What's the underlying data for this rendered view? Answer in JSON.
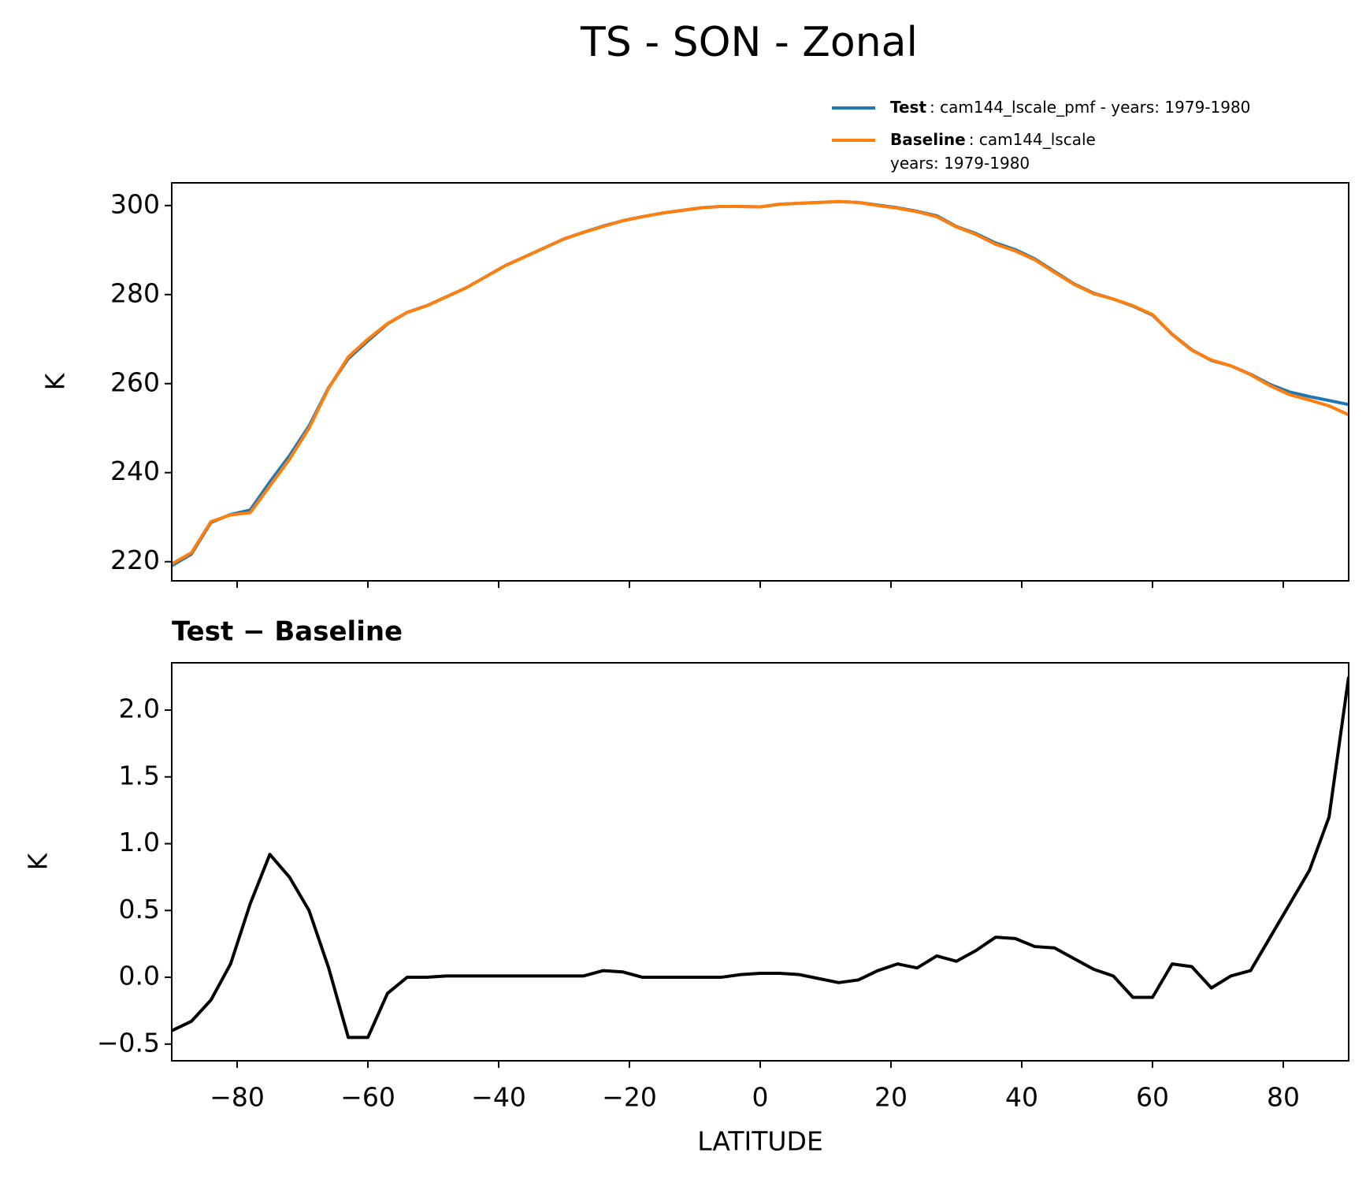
{
  "chart_data": [
    {
      "type": "line",
      "title": "TS - SON - Zonal",
      "ylabel": "K",
      "legend": "above right",
      "show_xtick_labels": false,
      "x": [
        -90,
        -87,
        -84,
        -81,
        -78,
        -75,
        -72,
        -69,
        -66,
        -63,
        -60,
        -57,
        -54,
        -51,
        -48,
        -45,
        -42,
        -39,
        -36,
        -33,
        -30,
        -27,
        -24,
        -21,
        -18,
        -15,
        -12,
        -9,
        -6,
        -3,
        0,
        3,
        6,
        9,
        12,
        15,
        18,
        21,
        24,
        27,
        30,
        33,
        36,
        39,
        42,
        45,
        48,
        51,
        54,
        57,
        60,
        63,
        66,
        69,
        72,
        75,
        78,
        81,
        84,
        87,
        90
      ],
      "series": [
        {
          "name": "Test",
          "legend_text": [
            ": cam144_lscale_pmf - years: 1979-1980"
          ],
          "color": "#1f77b4",
          "values": [
            219.1,
            221.7,
            228.8,
            230.6,
            231.6,
            237.9,
            243.8,
            250.5,
            259.1,
            265.6,
            269.6,
            273.4,
            276,
            277.5,
            279.5,
            281.5,
            284,
            286.5,
            288.5,
            290.5,
            292.5,
            294,
            295.4,
            296.6,
            297.5,
            298.3,
            298.9,
            299.5,
            299.8,
            299.8,
            299.7,
            300.3,
            300.5,
            300.7,
            300.9,
            300.7,
            300.1,
            299.5,
            298.7,
            297.7,
            295.3,
            293.7,
            291.6,
            290.1,
            288,
            285.2,
            282.4,
            280.3,
            279,
            277.4,
            275.4,
            271.1,
            267.6,
            265.2,
            264,
            262.1,
            259.8,
            258.1,
            257.1,
            256.2,
            255.3
          ]
        },
        {
          "name": "Baseline",
          "legend_text": [
            ": cam144_lscale",
            "years: 1979-1980"
          ],
          "color": "#ff7f0e",
          "values": [
            219.5,
            222,
            229,
            230.5,
            231,
            237,
            243,
            250,
            259,
            266,
            270,
            273.5,
            276,
            277.5,
            279.5,
            281.5,
            284,
            286.5,
            288.5,
            290.5,
            292.5,
            294,
            295.3,
            296.6,
            297.5,
            298.3,
            298.9,
            299.5,
            299.8,
            299.8,
            299.7,
            300.3,
            300.5,
            300.7,
            300.9,
            300.7,
            300,
            299.4,
            298.6,
            297.5,
            295.2,
            293.5,
            291.3,
            289.8,
            287.8,
            285,
            282.3,
            280.2,
            279,
            277.5,
            275.5,
            271,
            267.5,
            265.3,
            264,
            262,
            259.5,
            257.5,
            256.3,
            255,
            253
          ]
        }
      ],
      "xlim": [
        -90,
        90
      ],
      "xticks": [
        {
          "value": -80,
          "label": "−80"
        },
        {
          "value": -60,
          "label": "−60"
        },
        {
          "value": -40,
          "label": "−40"
        },
        {
          "value": -20,
          "label": "−20"
        },
        0,
        20,
        40,
        60,
        80
      ],
      "ylim": [
        215.7,
        305.1
      ],
      "yticks": [
        220,
        240,
        260,
        280,
        300
      ]
    },
    {
      "type": "line",
      "title": "Test − Baseline",
      "xlabel": "LATITUDE",
      "ylabel": "K",
      "show_xtick_labels": true,
      "x": [
        -90,
        -87,
        -84,
        -81,
        -78,
        -75,
        -72,
        -69,
        -66,
        -63,
        -60,
        -57,
        -54,
        -51,
        -48,
        -45,
        -42,
        -39,
        -36,
        -33,
        -30,
        -27,
        -24,
        -21,
        -18,
        -15,
        -12,
        -9,
        -6,
        -3,
        0,
        3,
        6,
        9,
        12,
        15,
        18,
        21,
        24,
        27,
        30,
        33,
        36,
        39,
        42,
        45,
        48,
        51,
        54,
        57,
        60,
        63,
        66,
        69,
        72,
        75,
        78,
        81,
        84,
        87,
        90
      ],
      "series": [
        {
          "color": "#000000",
          "values": [
            -0.4,
            -0.33,
            -0.17,
            0.1,
            0.55,
            0.92,
            0.75,
            0.5,
            0.07,
            -0.45,
            -0.45,
            -0.12,
            0,
            0,
            0.01,
            0.01,
            0.01,
            0.01,
            0.01,
            0.01,
            0.01,
            0.01,
            0.05,
            0.04,
            0,
            0,
            0,
            0,
            0,
            0.02,
            0.03,
            0.03,
            0.02,
            -0.01,
            -0.04,
            -0.02,
            0.05,
            0.1,
            0.07,
            0.16,
            0.12,
            0.2,
            0.3,
            0.29,
            0.23,
            0.22,
            0.14,
            0.06,
            0.01,
            -0.15,
            -0.15,
            0.1,
            0.08,
            -0.08,
            0.01,
            0.05,
            0.3,
            0.55,
            0.8,
            1.2,
            2.25
          ]
        }
      ],
      "xlim": [
        -90,
        90
      ],
      "xticks": [
        {
          "value": -80,
          "label": "−80"
        },
        {
          "value": -60,
          "label": "−60"
        },
        {
          "value": -40,
          "label": "−40"
        },
        {
          "value": -20,
          "label": "−20"
        },
        0,
        20,
        40,
        60,
        80
      ],
      "ylim": [
        -0.625,
        2.354
      ],
      "yticks": [
        {
          "value": -0.5,
          "label": "−0.5"
        },
        {
          "value": 0,
          "label": "0.0"
        },
        {
          "value": 0.5,
          "label": "0.5"
        },
        {
          "value": 1,
          "label": "1.0"
        },
        {
          "value": 1.5,
          "label": "1.5"
        },
        {
          "value": 2,
          "label": "2.0"
        }
      ]
    }
  ]
}
